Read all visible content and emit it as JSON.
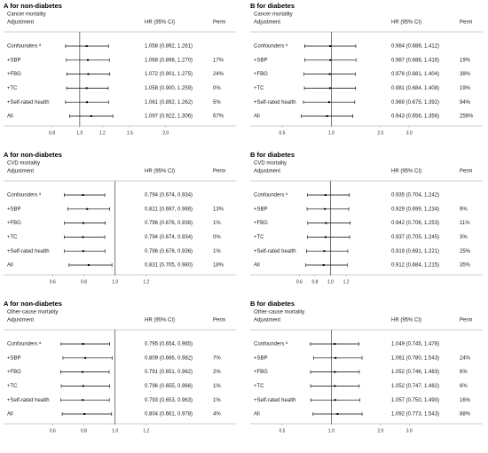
{
  "chart_data": [
    {
      "type": "forest",
      "title": "A for non-diabetes",
      "subtitle": "Cancer mortality",
      "column_headers": [
        "Adjustment",
        "HR (95% CI)",
        "Perm"
      ],
      "categories": [
        "Confounders ᵃ",
        "+SBP",
        "+FBG",
        "+TC",
        "+Self-rated health",
        "All"
      ],
      "values": [
        1.058,
        1.068,
        1.072,
        1.058,
        1.061,
        1.097
      ],
      "lower": [
        0.892,
        0.898,
        0.901,
        0.9,
        0.892,
        0.922
      ],
      "upper": [
        1.261,
        1.27,
        1.275,
        1.259,
        1.262,
        1.306
      ],
      "value_labels": [
        "1.058 (0.892, 1.261)",
        "1.068 (0.898, 1.270)",
        "1.072 (0.901, 1.275)",
        "1.058 (0.900, 1.259)",
        "1.061 (0.892, 1.262)",
        "1.097 (0.922, 1.306)"
      ],
      "perm": [
        null,
        "17%",
        "24%",
        "0%",
        "5%",
        "67%"
      ],
      "log_scale": true,
      "xlim": [
        0.7,
        2.2
      ],
      "xticks": [
        0.8,
        {
          "value": 1,
          "label": "1.0"
        },
        1.2,
        1.5,
        {
          "value": 2,
          "label": "2.0"
        }
      ],
      "ref_line": 1,
      "color": "#000000"
    },
    {
      "type": "forest",
      "title": "B for diabetes",
      "subtitle": "Cancer mortality",
      "column_headers": [
        "Adjustment",
        "HR (95% CI)",
        "Perm"
      ],
      "categories": [
        "Confounders ᵃ",
        "+SBP",
        "+FBG",
        "+TC",
        "+Self-rated health",
        "All"
      ],
      "values": [
        0.984,
        0.987,
        0.978,
        0.981,
        0.969,
        0.943
      ],
      "lower": [
        0.686,
        0.688,
        0.681,
        0.684,
        0.675,
        0.656
      ],
      "upper": [
        1.412,
        1.416,
        1.404,
        1.408,
        1.392,
        1.356
      ],
      "value_labels": [
        "0.984 (0.686, 1.412)",
        "0.987 (0.688, 1.416)",
        "0.978 (0.681, 1.404)",
        "0.981 (0.684, 1.408)",
        "0.969 (0.675, 1.392)",
        "0.943 (0.656, 1.356)"
      ],
      "perm": [
        null,
        "19%",
        "38%",
        "19%",
        "94%",
        "256%"
      ],
      "log_scale": true,
      "xlim": [
        0.5,
        3.7
      ],
      "xticks": [
        0.5,
        {
          "value": 1,
          "label": "1.0"
        },
        {
          "value": 2,
          "label": "2.0"
        },
        {
          "value": 3,
          "label": "3.0"
        }
      ],
      "ref_line": 1,
      "color": "#000000"
    },
    {
      "type": "forest",
      "title": "A for non-diabetes",
      "subtitle": "CVD mortality",
      "column_headers": [
        "Adjustment",
        "HR (95% CI)",
        "Perm"
      ],
      "categories": [
        "Confounders ᵃ",
        "+SBP",
        "+FBG",
        "+TC",
        "+Self-rated health",
        "All"
      ],
      "values": [
        0.794,
        0.821,
        0.796,
        0.794,
        0.796,
        0.831
      ],
      "lower": [
        0.674,
        0.697,
        0.676,
        0.674,
        0.676,
        0.705
      ],
      "upper": [
        0.934,
        0.966,
        0.938,
        0.934,
        0.936,
        0.98
      ],
      "value_labels": [
        "0.794 (0.674, 0.934)",
        "0.821 (0.697, 0.966)",
        "0.796 (0.676, 0.938)",
        "0.794 (0.674, 0.934)",
        "0.796 (0.676, 0.936)",
        "0.831 (0.705, 0.980)"
      ],
      "perm": [
        null,
        "13%",
        "1%",
        "0%",
        "1%",
        "18%"
      ],
      "log_scale": false,
      "xlim": [
        0.49,
        1.4
      ],
      "xticks": [
        0.6,
        0.8,
        {
          "value": 1,
          "label": "1.0"
        },
        1.2
      ],
      "ref_line": 1,
      "color": "#000000"
    },
    {
      "type": "forest",
      "title": "B for diabetes",
      "subtitle": "CVD mortality",
      "column_headers": [
        "Adjustment",
        "HR (95% CI)",
        "Perm"
      ],
      "categories": [
        "Confounders ᵃ",
        "+SBP",
        "+FBG",
        "+TC",
        "+Self-rated health",
        "All"
      ],
      "values": [
        0.935,
        0.929,
        0.942,
        0.937,
        0.919,
        0.912
      ],
      "lower": [
        0.704,
        0.699,
        0.708,
        0.705,
        0.691,
        0.684
      ],
      "upper": [
        1.242,
        1.234,
        1.253,
        1.245,
        1.221,
        1.215
      ],
      "value_labels": [
        "0.935 (0.704, 1.242)",
        "0.929 (0.699, 1.234)",
        "0.942 (0.708, 1.253)",
        "0.937 (0.705, 1.245)",
        "0.919 (0.691, 1.221)",
        "0.912 (0.684, 1.215)"
      ],
      "perm": [
        null,
        "9%",
        "11%",
        "3%",
        "25%",
        "35%"
      ],
      "log_scale": false,
      "xlim": [
        0.38,
        2.2
      ],
      "xticks": [
        0.6,
        0.8,
        {
          "value": 1,
          "label": "1.0"
        },
        1.2
      ],
      "ref_line": 1,
      "color": "#000000"
    },
    {
      "type": "forest",
      "title": "A for non-diabetes",
      "subtitle": "Other-cause mortality",
      "column_headers": [
        "Adjustment",
        "HR (95% CI)",
        "Perm"
      ],
      "categories": [
        "Confounders ᵃ",
        "+SBP",
        "+FBG",
        "+TC",
        "+Self-rated health",
        "All"
      ],
      "values": [
        0.795,
        0.809,
        0.791,
        0.796,
        0.793,
        0.804
      ],
      "lower": [
        0.654,
        0.666,
        0.651,
        0.655,
        0.653,
        0.661
      ],
      "upper": [
        0.965,
        0.982,
        0.962,
        0.966,
        0.963,
        0.978
      ],
      "value_labels": [
        "0.795 (0.654, 0.965)",
        "0.809 (0.666, 0.982)",
        "0.791 (0.651, 0.962)",
        "0.796 (0.655, 0.966)",
        "0.793 (0.653, 0.963)",
        "0.804 (0.661, 0.978)"
      ],
      "perm": [
        null,
        "7%",
        "2%",
        "1%",
        "1%",
        "4%"
      ],
      "log_scale": false,
      "xlim": [
        0.49,
        1.4
      ],
      "xticks": [
        0.6,
        0.8,
        {
          "value": 1,
          "label": "1.0"
        },
        1.2
      ],
      "ref_line": 1,
      "color": "#000000"
    },
    {
      "type": "forest",
      "title": "B for diabetes",
      "subtitle": "Other-cause mortality",
      "column_headers": [
        "Adjustment",
        "HR (95% CI)",
        "Perm"
      ],
      "categories": [
        "Confounders ᵃ",
        "+SBP",
        "+FBG",
        "+TC",
        "+Self-rated health",
        "All"
      ],
      "values": [
        1.049,
        1.061,
        1.052,
        1.052,
        1.057,
        1.092
      ],
      "lower": [
        0.745,
        0.78,
        0.746,
        0.747,
        0.75,
        0.773
      ],
      "upper": [
        1.478,
        1.543,
        1.483,
        1.482,
        1.49,
        1.543
      ],
      "value_labels": [
        "1.049 (0.745, 1.478)",
        "1.061 (0.780, 1.543)",
        "1.052 (0.746, 1.483)",
        "1.052 (0.747, 1.482)",
        "1.057 (0.750, 1.490)",
        "1.092 (0.773, 1.543)"
      ],
      "perm": [
        null,
        "24%",
        "6%",
        "6%",
        "16%",
        "88%"
      ],
      "log_scale": true,
      "xlim": [
        0.5,
        3.7
      ],
      "xticks": [
        0.5,
        {
          "value": 1,
          "label": "1.0"
        },
        {
          "value": 2,
          "label": "2.0"
        },
        {
          "value": 3,
          "label": "3.0"
        }
      ],
      "ref_line": 1,
      "color": "#000000"
    }
  ]
}
